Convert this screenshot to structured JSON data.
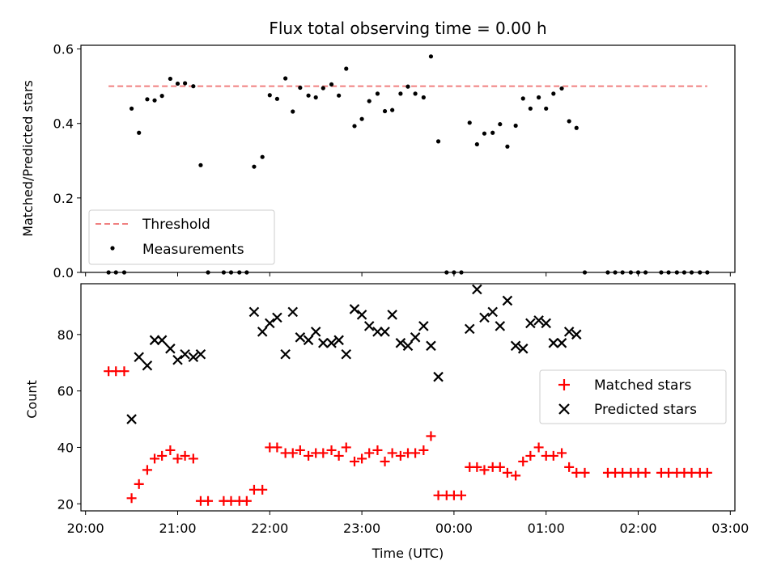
{
  "chart_data": {
    "title": "Flux total observing time = 0.00 h",
    "xlabel": "Time (UTC)",
    "x_ticks": [
      "20:00",
      "21:00",
      "22:00",
      "23:00",
      "00:00",
      "01:00",
      "02:00",
      "03:00"
    ],
    "xlim_hours": [
      19.95,
      27.05
    ],
    "colors": {
      "threshold": "#f08080",
      "measurements": "#000000",
      "matched": "#ff0000",
      "predicted": "#000000"
    },
    "panels": [
      {
        "type": "scatter",
        "ylabel": "Matched/Predicted stars",
        "ylim": [
          0,
          0.61
        ],
        "y_ticks": [
          "0.0",
          "0.2",
          "0.4",
          "0.6"
        ],
        "legend_position": "lower-left",
        "threshold": {
          "name": "Threshold",
          "value": 0.5,
          "x_start": 20.25,
          "x_end": 26.75
        },
        "series": [
          {
            "name": "Measurements",
            "marker": "dot",
            "points": [
              [
                20.25,
                0.0
              ],
              [
                20.33,
                0.0
              ],
              [
                20.42,
                0.0
              ],
              [
                20.5,
                0.44
              ],
              [
                20.58,
                0.375
              ],
              [
                20.67,
                0.465
              ],
              [
                20.75,
                0.462
              ],
              [
                20.83,
                0.474
              ],
              [
                20.92,
                0.52
              ],
              [
                21.0,
                0.507
              ],
              [
                21.08,
                0.508
              ],
              [
                21.17,
                0.5
              ],
              [
                21.25,
                0.288
              ],
              [
                21.33,
                0.0
              ],
              [
                21.5,
                0.0
              ],
              [
                21.58,
                0.0
              ],
              [
                21.67,
                0.0
              ],
              [
                21.75,
                0.0
              ],
              [
                21.83,
                0.284
              ],
              [
                21.92,
                0.31
              ],
              [
                22.0,
                0.476
              ],
              [
                22.08,
                0.466
              ],
              [
                22.17,
                0.521
              ],
              [
                22.25,
                0.432
              ],
              [
                22.33,
                0.496
              ],
              [
                22.42,
                0.475
              ],
              [
                22.5,
                0.47
              ],
              [
                22.58,
                0.495
              ],
              [
                22.67,
                0.505
              ],
              [
                22.75,
                0.475
              ],
              [
                22.83,
                0.547
              ],
              [
                22.92,
                0.393
              ],
              [
                23.0,
                0.412
              ],
              [
                23.08,
                0.46
              ],
              [
                23.17,
                0.48
              ],
              [
                23.25,
                0.433
              ],
              [
                23.33,
                0.436
              ],
              [
                23.42,
                0.48
              ],
              [
                23.5,
                0.499
              ],
              [
                23.58,
                0.48
              ],
              [
                23.67,
                0.47
              ],
              [
                23.75,
                0.58
              ],
              [
                23.83,
                0.352
              ],
              [
                23.92,
                0.0
              ],
              [
                24.0,
                0.0
              ],
              [
                24.08,
                0.0
              ],
              [
                24.17,
                0.402
              ],
              [
                24.25,
                0.344
              ],
              [
                24.33,
                0.373
              ],
              [
                24.42,
                0.375
              ],
              [
                24.5,
                0.398
              ],
              [
                24.58,
                0.338
              ],
              [
                24.67,
                0.394
              ],
              [
                24.75,
                0.467
              ],
              [
                24.83,
                0.44
              ],
              [
                24.92,
                0.47
              ],
              [
                25.0,
                0.44
              ],
              [
                25.08,
                0.48
              ],
              [
                25.17,
                0.494
              ],
              [
                25.25,
                0.406
              ],
              [
                25.33,
                0.388
              ],
              [
                25.42,
                0.0
              ],
              [
                25.67,
                0.0
              ],
              [
                25.75,
                0.0
              ],
              [
                25.83,
                0.0
              ],
              [
                25.92,
                0.0
              ],
              [
                26.0,
                0.0
              ],
              [
                26.08,
                0.0
              ],
              [
                26.25,
                0.0
              ],
              [
                26.33,
                0.0
              ],
              [
                26.42,
                0.0
              ],
              [
                26.5,
                0.0
              ],
              [
                26.58,
                0.0
              ],
              [
                26.67,
                0.0
              ],
              [
                26.75,
                0.0
              ]
            ]
          }
        ]
      },
      {
        "type": "scatter",
        "ylabel": "Count",
        "ylim": [
          17.5,
          98
        ],
        "y_ticks": [
          "20",
          "40",
          "60",
          "80"
        ],
        "legend_position": "right",
        "series": [
          {
            "name": "Matched stars",
            "marker": "plus",
            "points": [
              [
                20.25,
                67
              ],
              [
                20.33,
                67
              ],
              [
                20.42,
                67
              ],
              [
                20.5,
                22
              ],
              [
                20.58,
                27
              ],
              [
                20.67,
                32
              ],
              [
                20.75,
                36
              ],
              [
                20.83,
                37
              ],
              [
                20.92,
                39
              ],
              [
                21.0,
                36
              ],
              [
                21.08,
                37
              ],
              [
                21.17,
                36
              ],
              [
                21.25,
                21
              ],
              [
                21.33,
                21
              ],
              [
                21.5,
                21
              ],
              [
                21.58,
                21
              ],
              [
                21.67,
                21
              ],
              [
                21.75,
                21
              ],
              [
                21.83,
                25
              ],
              [
                21.92,
                25
              ],
              [
                22.0,
                40
              ],
              [
                22.08,
                40
              ],
              [
                22.17,
                38
              ],
              [
                22.25,
                38
              ],
              [
                22.33,
                39
              ],
              [
                22.42,
                37
              ],
              [
                22.5,
                38
              ],
              [
                22.58,
                38
              ],
              [
                22.67,
                39
              ],
              [
                22.75,
                37
              ],
              [
                22.83,
                40
              ],
              [
                22.92,
                35
              ],
              [
                23.0,
                36
              ],
              [
                23.08,
                38
              ],
              [
                23.17,
                39
              ],
              [
                23.25,
                35
              ],
              [
                23.33,
                38
              ],
              [
                23.42,
                37
              ],
              [
                23.5,
                38
              ],
              [
                23.58,
                38
              ],
              [
                23.67,
                39
              ],
              [
                23.75,
                44
              ],
              [
                23.83,
                23
              ],
              [
                23.92,
                23
              ],
              [
                24.0,
                23
              ],
              [
                24.08,
                23
              ],
              [
                24.17,
                33
              ],
              [
                24.25,
                33
              ],
              [
                24.33,
                32
              ],
              [
                24.42,
                33
              ],
              [
                24.5,
                33
              ],
              [
                24.58,
                31
              ],
              [
                24.67,
                30
              ],
              [
                24.75,
                35
              ],
              [
                24.83,
                37
              ],
              [
                24.92,
                40
              ],
              [
                25.0,
                37
              ],
              [
                25.08,
                37
              ],
              [
                25.17,
                38
              ],
              [
                25.25,
                33
              ],
              [
                25.33,
                31
              ],
              [
                25.42,
                31
              ],
              [
                25.67,
                31
              ],
              [
                25.75,
                31
              ],
              [
                25.83,
                31
              ],
              [
                25.92,
                31
              ],
              [
                26.0,
                31
              ],
              [
                26.08,
                31
              ],
              [
                26.25,
                31
              ],
              [
                26.33,
                31
              ],
              [
                26.42,
                31
              ],
              [
                26.5,
                31
              ],
              [
                26.58,
                31
              ],
              [
                26.67,
                31
              ],
              [
                26.75,
                31
              ]
            ]
          },
          {
            "name": "Predicted stars",
            "marker": "x",
            "points": [
              [
                20.5,
                50
              ],
              [
                20.58,
                72
              ],
              [
                20.67,
                69
              ],
              [
                20.75,
                78
              ],
              [
                20.83,
                78
              ],
              [
                20.92,
                75
              ],
              [
                21.0,
                71
              ],
              [
                21.08,
                73
              ],
              [
                21.17,
                72
              ],
              [
                21.25,
                73
              ],
              [
                21.83,
                88
              ],
              [
                21.92,
                81
              ],
              [
                22.0,
                84
              ],
              [
                22.08,
                86
              ],
              [
                22.17,
                73
              ],
              [
                22.25,
                88
              ],
              [
                22.33,
                79
              ],
              [
                22.42,
                78
              ],
              [
                22.5,
                81
              ],
              [
                22.58,
                77
              ],
              [
                22.67,
                77
              ],
              [
                22.75,
                78
              ],
              [
                22.83,
                73
              ],
              [
                22.92,
                89
              ],
              [
                23.0,
                87
              ],
              [
                23.08,
                83
              ],
              [
                23.17,
                81
              ],
              [
                23.25,
                81
              ],
              [
                23.33,
                87
              ],
              [
                23.42,
                77
              ],
              [
                23.5,
                76
              ],
              [
                23.58,
                79
              ],
              [
                23.67,
                83
              ],
              [
                23.75,
                76
              ],
              [
                23.83,
                65
              ],
              [
                24.17,
                82
              ],
              [
                24.25,
                96
              ],
              [
                24.33,
                86
              ],
              [
                24.42,
                88
              ],
              [
                24.5,
                83
              ],
              [
                24.58,
                92
              ],
              [
                24.67,
                76
              ],
              [
                24.75,
                75
              ],
              [
                24.83,
                84
              ],
              [
                24.92,
                85
              ],
              [
                25.0,
                84
              ],
              [
                25.08,
                77
              ],
              [
                25.17,
                77
              ],
              [
                25.25,
                81
              ],
              [
                25.33,
                80
              ]
            ]
          }
        ]
      }
    ]
  }
}
